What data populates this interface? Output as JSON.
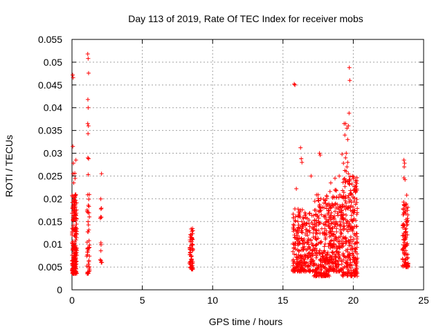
{
  "chart_data": {
    "type": "scatter",
    "title": "Day 113 of 2019, Rate Of TEC Index for receiver mobs",
    "xlabel": "GPS time / hours",
    "ylabel": "ROTI / TECUs",
    "xlim": [
      0,
      25
    ],
    "ylim": [
      0,
      0.055
    ],
    "xticks": [
      0,
      5,
      10,
      15,
      20,
      25
    ],
    "xtick_labels": [
      "0",
      "5",
      "10",
      "15",
      "20",
      "25"
    ],
    "yticks": [
      0,
      0.005,
      0.01,
      0.015,
      0.02,
      0.025,
      0.03,
      0.035,
      0.04,
      0.045,
      0.05,
      0.055
    ],
    "ytick_labels": [
      "0",
      "0.005",
      "0.01",
      "0.015",
      "0.02",
      "0.025",
      "0.03",
      "0.035",
      "0.04",
      "0.045",
      "0.05",
      "0.055"
    ],
    "grid": true,
    "marker": "+",
    "color": "#ff0000",
    "clusters": [
      {
        "x_start": 0.0,
        "x_end": 0.35,
        "y_min": 0.0035,
        "y_max": 0.021,
        "count": 200
      },
      {
        "x_start": 1.05,
        "x_end": 1.25,
        "y_min": 0.0035,
        "y_max": 0.022,
        "count": 45
      },
      {
        "x_start": 2.0,
        "x_end": 2.15,
        "y_min": 0.006,
        "y_max": 0.0205,
        "count": 14
      },
      {
        "x_start": 8.35,
        "x_end": 8.6,
        "y_min": 0.0045,
        "y_max": 0.0135,
        "count": 65
      },
      {
        "x_start": 15.7,
        "x_end": 16.4,
        "y_min": 0.004,
        "y_max": 0.0185,
        "count": 150
      },
      {
        "x_start": 16.4,
        "x_end": 17.2,
        "y_min": 0.004,
        "y_max": 0.0175,
        "count": 130
      },
      {
        "x_start": 17.2,
        "x_end": 18.3,
        "y_min": 0.003,
        "y_max": 0.021,
        "count": 240
      },
      {
        "x_start": 18.3,
        "x_end": 19.2,
        "y_min": 0.004,
        "y_max": 0.022,
        "count": 200
      },
      {
        "x_start": 19.2,
        "x_end": 20.3,
        "y_min": 0.003,
        "y_max": 0.025,
        "count": 280
      },
      {
        "x_start": 23.5,
        "x_end": 23.9,
        "y_min": 0.005,
        "y_max": 0.0195,
        "count": 110
      }
    ],
    "points": [
      {
        "x": 0.05,
        "y": 0.0472
      },
      {
        "x": 0.08,
        "y": 0.0466
      },
      {
        "x": 0.06,
        "y": 0.0315
      },
      {
        "x": 0.1,
        "y": 0.0278
      },
      {
        "x": 0.28,
        "y": 0.0285
      },
      {
        "x": 0.08,
        "y": 0.0255
      },
      {
        "x": 0.2,
        "y": 0.0256
      },
      {
        "x": 0.12,
        "y": 0.0235
      },
      {
        "x": 0.22,
        "y": 0.0245
      },
      {
        "x": 1.12,
        "y": 0.0518
      },
      {
        "x": 1.15,
        "y": 0.0508
      },
      {
        "x": 1.18,
        "y": 0.0476
      },
      {
        "x": 1.13,
        "y": 0.0418
      },
      {
        "x": 1.15,
        "y": 0.04
      },
      {
        "x": 1.12,
        "y": 0.0365
      },
      {
        "x": 1.17,
        "y": 0.036
      },
      {
        "x": 1.14,
        "y": 0.0343
      },
      {
        "x": 1.13,
        "y": 0.029
      },
      {
        "x": 1.18,
        "y": 0.0288
      },
      {
        "x": 1.15,
        "y": 0.0253
      },
      {
        "x": 2.1,
        "y": 0.0255
      },
      {
        "x": 15.8,
        "y": 0.0452
      },
      {
        "x": 15.85,
        "y": 0.045
      },
      {
        "x": 16.25,
        "y": 0.0312
      },
      {
        "x": 16.3,
        "y": 0.0288
      },
      {
        "x": 16.35,
        "y": 0.028
      },
      {
        "x": 15.95,
        "y": 0.0222
      },
      {
        "x": 17.6,
        "y": 0.03
      },
      {
        "x": 17.65,
        "y": 0.0296
      },
      {
        "x": 17.0,
        "y": 0.025
      },
      {
        "x": 18.4,
        "y": 0.0235
      },
      {
        "x": 18.7,
        "y": 0.0245
      },
      {
        "x": 19.0,
        "y": 0.025
      },
      {
        "x": 19.2,
        "y": 0.0298
      },
      {
        "x": 19.3,
        "y": 0.0278
      },
      {
        "x": 19.35,
        "y": 0.0365
      },
      {
        "x": 19.45,
        "y": 0.0365
      },
      {
        "x": 19.55,
        "y": 0.0355
      },
      {
        "x": 19.4,
        "y": 0.034
      },
      {
        "x": 19.6,
        "y": 0.033
      },
      {
        "x": 19.65,
        "y": 0.036
      },
      {
        "x": 19.7,
        "y": 0.0388
      },
      {
        "x": 19.75,
        "y": 0.046
      },
      {
        "x": 19.72,
        "y": 0.0488
      },
      {
        "x": 19.5,
        "y": 0.03
      },
      {
        "x": 19.45,
        "y": 0.029
      },
      {
        "x": 19.55,
        "y": 0.027
      },
      {
        "x": 19.6,
        "y": 0.028
      },
      {
        "x": 19.5,
        "y": 0.026
      },
      {
        "x": 19.65,
        "y": 0.0255
      },
      {
        "x": 19.4,
        "y": 0.0262
      },
      {
        "x": 23.6,
        "y": 0.0285
      },
      {
        "x": 23.65,
        "y": 0.0278
      },
      {
        "x": 23.62,
        "y": 0.027
      },
      {
        "x": 23.6,
        "y": 0.0246
      },
      {
        "x": 23.68,
        "y": 0.0242
      },
      {
        "x": 23.8,
        "y": 0.0208
      }
    ]
  }
}
